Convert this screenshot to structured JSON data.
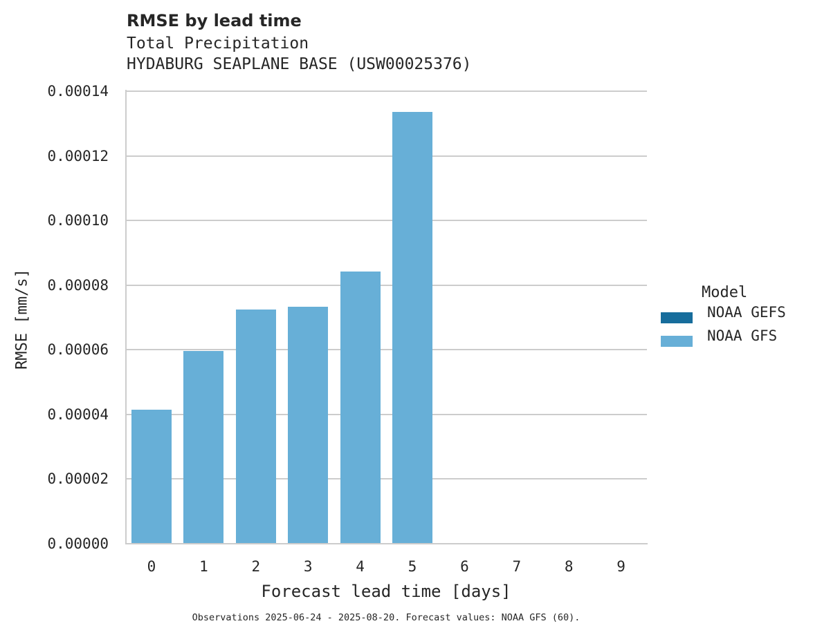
{
  "header": {
    "title": "RMSE by lead time",
    "subtitle_line1": "Total Precipitation",
    "subtitle_line2": "HYDABURG SEAPLANE BASE (USW00025376)"
  },
  "axes": {
    "ylabel": "RMSE [mm/s]",
    "xlabel": "Forecast lead time [days]",
    "yticks": [
      "0.00000",
      "0.00002",
      "0.00004",
      "0.00006",
      "0.00008",
      "0.00010",
      "0.00012",
      "0.00014"
    ],
    "xticks": [
      "0",
      "1",
      "2",
      "3",
      "4",
      "5",
      "6",
      "7",
      "8",
      "9"
    ]
  },
  "legend": {
    "title": "Model",
    "items": [
      {
        "label": "NOAA GEFS",
        "color": "#176d9c"
      },
      {
        "label": "NOAA GFS",
        "color": "#67afd7"
      }
    ]
  },
  "footnote": "Observations 2025-06-24 - 2025-08-20. Forecast values: NOAA GFS (60).",
  "chart_data": {
    "type": "bar",
    "title": "RMSE by lead time",
    "subtitle": "Total Precipitation — HYDABURG SEAPLANE BASE (USW00025376)",
    "xlabel": "Forecast lead time [days]",
    "ylabel": "RMSE [mm/s]",
    "categories": [
      "0",
      "1",
      "2",
      "3",
      "4",
      "5",
      "6",
      "7",
      "8",
      "9"
    ],
    "series": [
      {
        "name": "NOAA GEFS",
        "color": "#176d9c",
        "values": [
          null,
          null,
          null,
          null,
          null,
          null,
          null,
          null,
          null,
          null
        ]
      },
      {
        "name": "NOAA GFS",
        "color": "#67afd7",
        "values": [
          4.15e-05,
          5.96e-05,
          7.25e-05,
          7.33e-05,
          8.42e-05,
          0.0001336,
          null,
          null,
          null,
          null
        ]
      }
    ],
    "ylim": [
      0,
      0.00014
    ],
    "grid": "horizontal",
    "legend_position": "right",
    "footnote": "Observations 2025-06-24 - 2025-08-20. Forecast values: NOAA GFS (60)."
  }
}
